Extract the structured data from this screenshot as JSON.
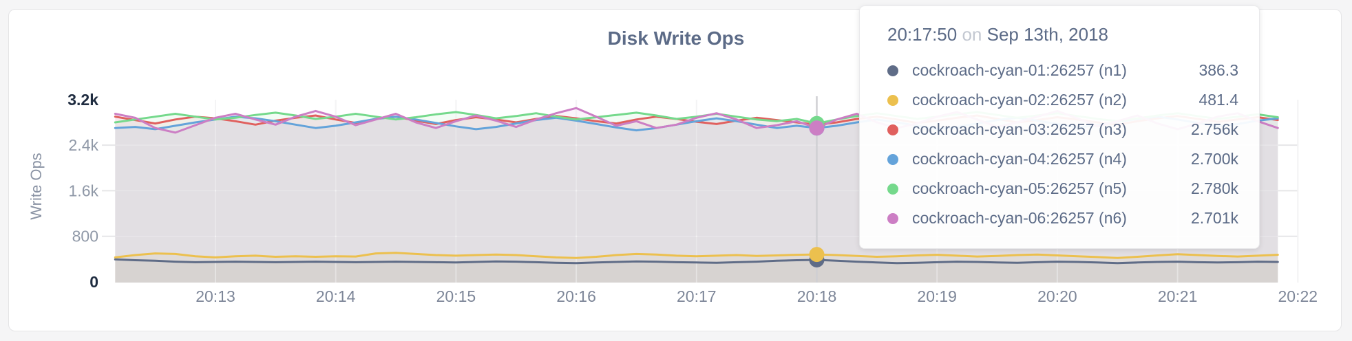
{
  "page": {
    "background_color": "#f5f5f6",
    "card_border_color": "#e4e4e6"
  },
  "chart": {
    "title": "Disk Write Ops",
    "y_axis_title": "Write Ops",
    "title_color": "#5c6b87"
  },
  "tooltip": {
    "time": "20:17:50",
    "connector": "on",
    "date": "Sep 13th, 2018",
    "rows": [
      {
        "label": "cockroach-cyan-01:26257 (n1)",
        "value": "386.3",
        "color": "#5f6c87"
      },
      {
        "label": "cockroach-cyan-02:26257 (n2)",
        "value": "481.4",
        "color": "#ecc04e"
      },
      {
        "label": "cockroach-cyan-03:26257 (n3)",
        "value": "2.756k",
        "color": "#e0605e"
      },
      {
        "label": "cockroach-cyan-04:26257 (n4)",
        "value": "2.700k",
        "color": "#64a3da"
      },
      {
        "label": "cockroach-cyan-05:26257 (n5)",
        "value": "2.780k",
        "color": "#75d98c"
      },
      {
        "label": "cockroach-cyan-06:26257 (n6)",
        "value": "2.701k",
        "color": "#cc7ec4"
      }
    ]
  },
  "chart_data": {
    "type": "line",
    "title": "Disk Write Ops",
    "xlabel": "",
    "ylabel": "Write Ops",
    "ylim": [
      0,
      3200
    ],
    "grid": true,
    "x_start_time": "20:12:10",
    "x_interval_seconds": 10,
    "x_tick_labels": [
      "20:13",
      "20:14",
      "20:15",
      "20:16",
      "20:17",
      "20:18",
      "20:19",
      "20:20",
      "20:21",
      "20:22"
    ],
    "y_tick_values": [
      0,
      800,
      1600,
      2400,
      3200
    ],
    "y_tick_labels": [
      "0",
      "800",
      "1.6k",
      "2.4k",
      "3.2k"
    ],
    "hover_index": 35,
    "hover_time_label": "20:17:50",
    "series": [
      {
        "name": "cockroach-cyan-01:26257 (n1)",
        "color": "#5f6c87",
        "hover_value": 386.3,
        "values": [
          395,
          380,
          370,
          355,
          345,
          350,
          355,
          350,
          345,
          350,
          355,
          350,
          345,
          350,
          355,
          350,
          345,
          340,
          350,
          360,
          355,
          345,
          335,
          330,
          340,
          350,
          360,
          355,
          345,
          340,
          335,
          345,
          355,
          370,
          380,
          386.3,
          370,
          355,
          340,
          330,
          335,
          345,
          355,
          350,
          340,
          335,
          345,
          355,
          350,
          340,
          330,
          340,
          350,
          355,
          345,
          340,
          345,
          355,
          350
        ]
      },
      {
        "name": "cockroach-cyan-02:26257 (n2)",
        "color": "#ecc04e",
        "hover_value": 481.4,
        "values": [
          430,
          470,
          500,
          490,
          450,
          430,
          450,
          460,
          440,
          450,
          440,
          450,
          445,
          500,
          510,
          490,
          470,
          460,
          470,
          480,
          470,
          450,
          430,
          420,
          440,
          470,
          490,
          480,
          460,
          450,
          460,
          470,
          455,
          465,
          475,
          481.4,
          470,
          455,
          440,
          450,
          465,
          475,
          460,
          445,
          455,
          470,
          480,
          465,
          450,
          435,
          420,
          440,
          465,
          485,
          470,
          455,
          445,
          460,
          475
        ]
      },
      {
        "name": "cockroach-cyan-03:26257 (n3)",
        "color": "#e0605e",
        "hover_value": 2756,
        "values": [
          2900,
          2840,
          2780,
          2850,
          2900,
          2870,
          2820,
          2760,
          2830,
          2880,
          2920,
          2850,
          2790,
          2860,
          2900,
          2830,
          2770,
          2840,
          2890,
          2850,
          2800,
          2860,
          2910,
          2870,
          2820,
          2780,
          2850,
          2900,
          2860,
          2810,
          2770,
          2830,
          2880,
          2840,
          2800,
          2756,
          2800,
          2860,
          2900,
          2850,
          2790,
          2830,
          2880,
          2920,
          2860,
          2800,
          2840,
          2890,
          2850,
          2800,
          2760,
          2820,
          2870,
          2910,
          2860,
          2810,
          2850,
          2890,
          2840
        ]
      },
      {
        "name": "cockroach-cyan-04:26257 (n4)",
        "color": "#64a3da",
        "hover_value": 2700,
        "values": [
          2700,
          2720,
          2680,
          2740,
          2800,
          2850,
          2900,
          2870,
          2820,
          2760,
          2700,
          2740,
          2800,
          2860,
          2900,
          2850,
          2790,
          2730,
          2680,
          2720,
          2780,
          2840,
          2880,
          2830,
          2770,
          2710,
          2660,
          2700,
          2760,
          2820,
          2870,
          2820,
          2760,
          2700,
          2740,
          2700,
          2740,
          2800,
          2850,
          2800,
          2740,
          2680,
          2720,
          2780,
          2840,
          2880,
          2830,
          2770,
          2710,
          2750,
          2810,
          2860,
          2900,
          2850,
          2790,
          2730,
          2770,
          2830,
          2870
        ]
      },
      {
        "name": "cockroach-cyan-05:26257 (n5)",
        "color": "#75d98c",
        "hover_value": 2780,
        "values": [
          2800,
          2850,
          2900,
          2950,
          2900,
          2850,
          2880,
          2930,
          2970,
          2920,
          2860,
          2900,
          2950,
          2900,
          2850,
          2890,
          2940,
          2980,
          2930,
          2870,
          2910,
          2960,
          2900,
          2850,
          2890,
          2930,
          2970,
          2920,
          2860,
          2900,
          2950,
          2900,
          2850,
          2820,
          2860,
          2780,
          2850,
          2910,
          2960,
          2910,
          2860,
          2900,
          2940,
          2980,
          2930,
          2880,
          2920,
          2960,
          2910,
          2860,
          2820,
          2870,
          2920,
          2960,
          2910,
          2860,
          2900,
          2940,
          2890
        ]
      },
      {
        "name": "cockroach-cyan-06:26257 (n6)",
        "color": "#cc7ec4",
        "hover_value": 2701,
        "values": [
          2950,
          2880,
          2700,
          2620,
          2750,
          2880,
          2950,
          2850,
          2760,
          2900,
          3000,
          2900,
          2750,
          2850,
          2950,
          2800,
          2700,
          2820,
          2920,
          2830,
          2720,
          2850,
          2960,
          3050,
          2900,
          2740,
          2820,
          2700,
          2760,
          2880,
          2960,
          2850,
          2700,
          2750,
          2820,
          2701,
          2850,
          2950,
          2800,
          2700,
          2780,
          2900,
          2980,
          2850,
          2720,
          2800,
          2900,
          3000,
          2870,
          2730,
          2820,
          2920,
          2780,
          2680,
          2780,
          2900,
          2960,
          2820,
          2700
        ]
      }
    ],
    "legend_position": "tooltip",
    "axis_colors": {
      "tick_label": "#8f98a7",
      "tick_label_bounds": "#1f2c40",
      "x_tick_label": "#7d8698"
    }
  }
}
